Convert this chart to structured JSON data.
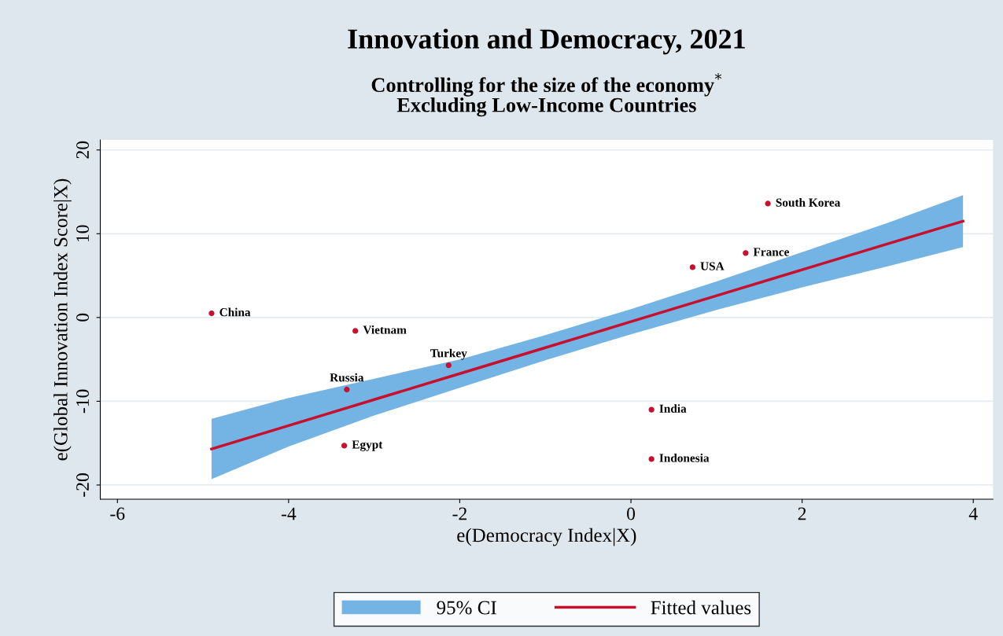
{
  "chart_data": {
    "type": "scatter",
    "title": "Innovation and Democracy, 2021",
    "subtitle": "Controlling for the size of the economy$^{*}$\nExcluding Low-Income Countries",
    "xlabel": "e(Democracy Index|X)",
    "ylabel": "e(Global Innovation Index Score|X)",
    "xlim": [
      -6.2,
      4.23
    ],
    "ylim": [
      -21.7,
      21.2
    ],
    "xticks": [
      -6,
      -4,
      -2,
      0,
      2,
      4
    ],
    "yticks": [
      -20,
      -10,
      0,
      10,
      20
    ],
    "grid": "y",
    "legend": "bottom",
    "series": [
      {
        "name": "Fitted values",
        "type": "line",
        "color": "#c8102e",
        "x": [
          -4.9,
          -4,
          -3,
          -2,
          -1,
          0,
          1,
          2,
          3,
          3.88
        ],
        "values": [
          -15.7,
          -12.9,
          -9.8,
          -6.7,
          -3.6,
          -0.5,
          2.6,
          5.7,
          8.8,
          11.5
        ],
        "lower": [
          -19.3,
          -15.4,
          -11.7,
          -8.4,
          -5.1,
          -2.0,
          0.9,
          3.6,
          6.1,
          8.4
        ],
        "upper": [
          -12.1,
          -9.6,
          -7.3,
          -5.0,
          -2.1,
          1.0,
          4.3,
          7.8,
          11.3,
          14.6
        ]
      },
      {
        "color": "#c8102e",
        "x": [
          -4.9,
          -3.22,
          -2.13,
          -3.32,
          -3.35,
          0.24,
          0.24,
          0.72,
          1.34,
          1.6
        ],
        "values": [
          0.5,
          -1.6,
          -5.7,
          -8.6,
          -15.3,
          -11.0,
          -16.9,
          6.0,
          7.7,
          13.6
        ]
      }
    ],
    "annotations": [
      "95% CI",
      {
        "text": "China",
        "x": -4.9,
        "y": 0.5
      },
      {
        "text": "Vietnam",
        "x": -3.22,
        "y": -1.6
      },
      {
        "text": "Turkey",
        "x": -2.13,
        "y": -5.7
      },
      {
        "text": "Russia",
        "x": -3.32,
        "y": -8.6
      },
      {
        "text": "Egypt",
        "x": -3.35,
        "y": -15.3
      },
      {
        "text": "India",
        "x": 0.24,
        "y": -11.0
      },
      {
        "text": "Indonesia",
        "x": 0.24,
        "y": -16.9
      },
      {
        "text": "USA",
        "x": 0.72,
        "y": 6.0
      },
      {
        "text": "France",
        "x": 1.34,
        "y": 7.7
      },
      {
        "text": "South Korea",
        "x": 1.6,
        "y": 13.6
      }
    ]
  }
}
